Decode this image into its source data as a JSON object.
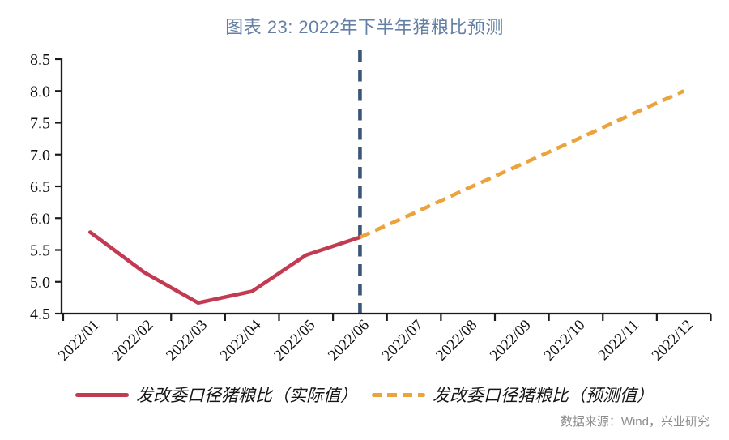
{
  "title": "图表 23: 2022年下半年猪粮比预测",
  "source": "数据来源：Wind，兴业研究",
  "colors": {
    "title_color": "#647FA4",
    "actual": "#C23B52",
    "forecast": "#EBA33C",
    "divider": "#3A5577",
    "axis": "#1A1A1A",
    "source_text": "#8C8C8C"
  },
  "legend": [
    {
      "label": "发改委口径猪粮比（实际值）",
      "style": "solid"
    },
    {
      "label": "发改委口径猪粮比（预测值）",
      "style": "dashed"
    }
  ],
  "chart_data": {
    "type": "line",
    "title": "图表 23: 2022年下半年猪粮比预测",
    "categories": [
      "2022/01",
      "2022/02",
      "2022/03",
      "2022/04",
      "2022/05",
      "2022/06",
      "2022/07",
      "2022/08",
      "2022/09",
      "2022/10",
      "2022/11",
      "2022/12"
    ],
    "series": [
      {
        "name": "发改委口径猪粮比（实际值）",
        "style": "solid",
        "color": "#C23B52",
        "values": [
          5.78,
          5.15,
          4.67,
          4.85,
          5.42,
          5.7,
          null,
          null,
          null,
          null,
          null,
          null
        ]
      },
      {
        "name": "发改委口径猪粮比（预测值）",
        "style": "dashed",
        "color": "#EBA33C",
        "values": [
          null,
          null,
          null,
          null,
          null,
          5.7,
          6.08,
          6.47,
          6.85,
          7.23,
          7.62,
          8.0
        ]
      }
    ],
    "xlabel": "",
    "ylabel": "",
    "ylim": [
      4.5,
      8.5
    ],
    "ytick_step": 0.5,
    "ytick_labels": [
      "4.5",
      "5.0",
      "5.5",
      "6.0",
      "6.5",
      "7.0",
      "7.5",
      "8.0",
      "8.5"
    ],
    "divider_at": "2022/06",
    "grid": false,
    "legend_position": "bottom"
  }
}
